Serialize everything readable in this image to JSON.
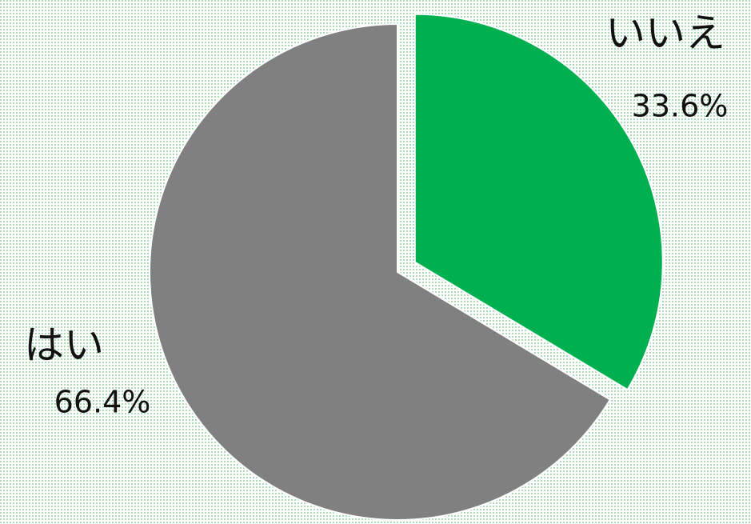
{
  "chart_data": {
    "type": "pie",
    "categories": [
      "いいえ",
      "はい"
    ],
    "values": [
      33.6,
      66.4
    ],
    "value_labels": [
      "33.6%",
      "66.4%"
    ],
    "colors": [
      "#00b050",
      "#808080"
    ]
  }
}
